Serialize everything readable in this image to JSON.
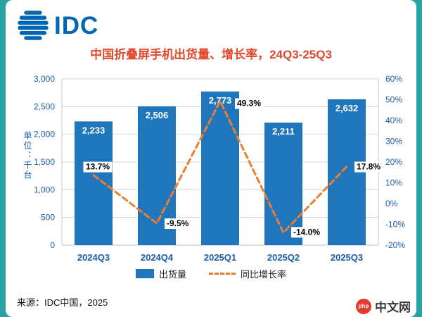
{
  "logo": {
    "text": "IDC"
  },
  "title": "中国折叠屏手机出货量、增长率，24Q3-25Q3",
  "y_axis_label": "单位：千台",
  "source": "来源：IDC中国，2025",
  "footer_logo": {
    "badge": "php",
    "text": "中文网"
  },
  "colors": {
    "bar": "#2076BC",
    "line": "#ED7D31",
    "title": "#E0492D",
    "axis_text": "#1B5EA6",
    "teal_background": "#29A2A3",
    "logo_blue": "#0066B2",
    "gridline": "#D9D9D9"
  },
  "chart_data": {
    "type": "bar+line",
    "title": "中国折叠屏手机出货量、增长率，24Q3-25Q3",
    "categories": [
      "2024Q3",
      "2024Q4",
      "2025Q1",
      "2025Q2",
      "2025Q3"
    ],
    "series": [
      {
        "name": "出货量",
        "type": "bar",
        "values": [
          2233,
          2506,
          2773,
          2211,
          2632
        ],
        "labels": [
          "2,233",
          "2,506",
          "2,773",
          "2,211",
          "2,632"
        ]
      },
      {
        "name": "同比增长率",
        "type": "line",
        "values": [
          13.7,
          -9.5,
          49.3,
          -14.0,
          17.8
        ],
        "labels": [
          "13.7%",
          "-9.5%",
          "49.3%",
          "-14.0%",
          "17.8%"
        ]
      }
    ],
    "left_axis": {
      "min": 0,
      "max": 3000,
      "ticks": [
        0,
        500,
        1000,
        1500,
        2000,
        2500,
        3000
      ],
      "tick_labels": [
        "0",
        "500",
        "1,000",
        "1,500",
        "2,000",
        "2,500",
        "3,000"
      ]
    },
    "right_axis": {
      "min": -20,
      "max": 60,
      "ticks": [
        -20,
        -10,
        0,
        10,
        20,
        30,
        40,
        50,
        60
      ],
      "tick_labels": [
        "-20%",
        "-10%",
        "0%",
        "10%",
        "20%",
        "30%",
        "40%",
        "50%",
        "60%"
      ]
    },
    "grid": "horizontal",
    "legend_position": "bottom"
  }
}
